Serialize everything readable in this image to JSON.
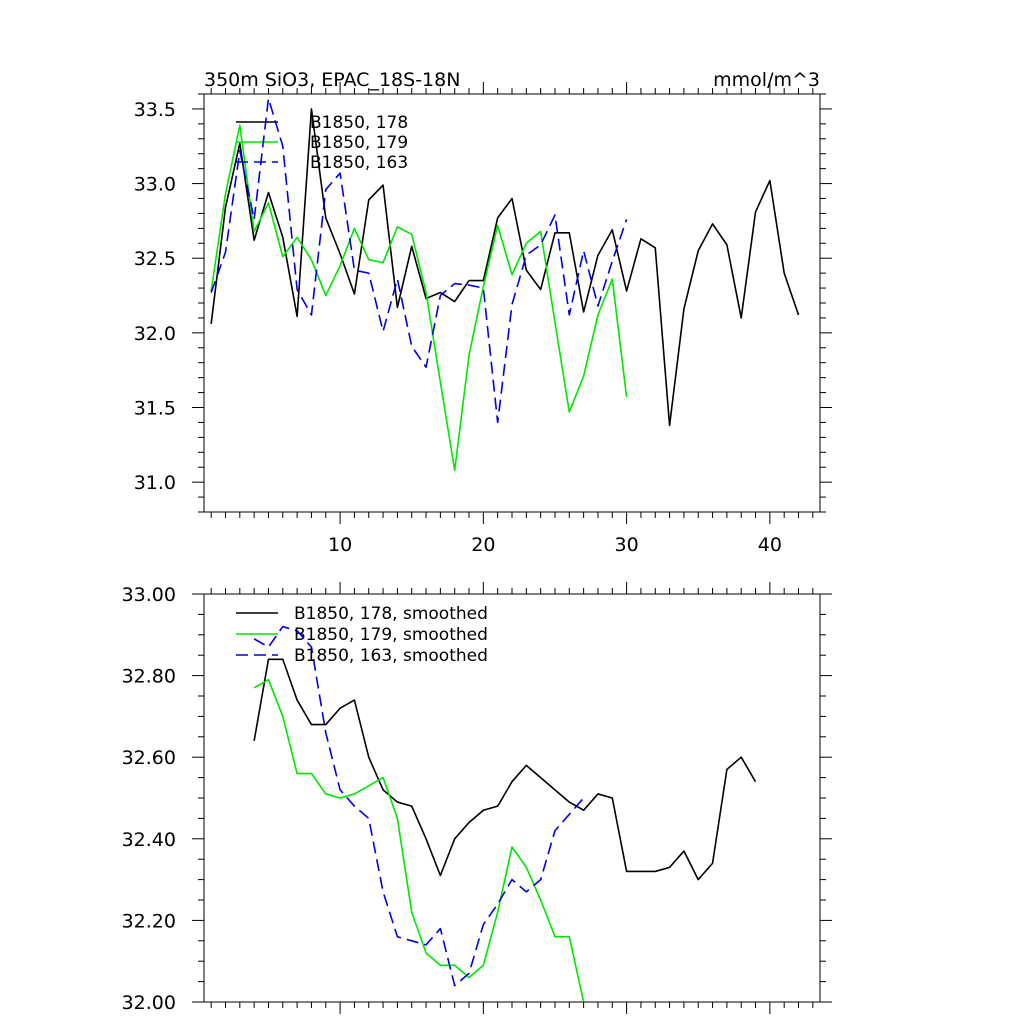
{
  "figure": {
    "title_left": "350m SiO3, EPAC_18S-18N",
    "title_right": "mmol/m^3"
  },
  "colors": {
    "series_178": "#000000",
    "series_179": "#00e600",
    "series_163": "#0000e6"
  },
  "chart_data": [
    {
      "type": "line",
      "title": "350m SiO3, EPAC_18S-18N",
      "units": "mmol/m^3",
      "xlim": [
        0.5,
        43.5
      ],
      "ylim": [
        30.8,
        33.6
      ],
      "xticks": [
        10,
        20,
        30,
        40
      ],
      "xtick_labels": [
        "10",
        "20",
        "30",
        "40"
      ],
      "yticks": [
        31.0,
        31.5,
        32.0,
        32.5,
        33.0,
        33.5
      ],
      "ytick_labels": [
        "31.0",
        "31.5",
        "32.0",
        "32.5",
        "33.0",
        "33.5"
      ],
      "legend_position": "top-left",
      "series": [
        {
          "name": "B1850, 178",
          "color_key": "series_178",
          "dash": "solid",
          "x": [
            1,
            2,
            3,
            4,
            5,
            6,
            7,
            8,
            9,
            10,
            11,
            12,
            13,
            14,
            15,
            16,
            17,
            18,
            19,
            20,
            21,
            22,
            23,
            24,
            25,
            26,
            27,
            28,
            29,
            30,
            31,
            32,
            33,
            34,
            35,
            36,
            37,
            38,
            39,
            40,
            41,
            42
          ],
          "values": [
            32.06,
            32.84,
            33.27,
            32.62,
            32.94,
            32.64,
            32.11,
            33.5,
            32.77,
            32.53,
            32.26,
            32.89,
            32.99,
            32.17,
            32.58,
            32.23,
            32.27,
            32.21,
            32.35,
            32.35,
            32.77,
            32.9,
            32.42,
            32.29,
            32.67,
            32.67,
            32.14,
            32.52,
            32.69,
            32.28,
            32.63,
            32.57,
            31.38,
            32.16,
            32.55,
            32.73,
            32.59,
            32.1,
            32.81,
            33.02,
            32.4,
            32.12
          ]
        },
        {
          "name": "B1850, 179",
          "color_key": "series_179",
          "dash": "solid",
          "x": [
            1,
            2,
            3,
            4,
            5,
            6,
            7,
            8,
            9,
            10,
            11,
            12,
            13,
            14,
            15,
            16,
            17,
            18,
            19,
            20,
            21,
            22,
            23,
            24,
            25,
            26,
            27,
            28,
            29,
            30
          ],
          "values": [
            32.28,
            32.93,
            33.39,
            32.68,
            32.87,
            32.51,
            32.64,
            32.49,
            32.25,
            32.45,
            32.7,
            32.49,
            32.47,
            32.71,
            32.66,
            32.27,
            31.67,
            31.08,
            31.85,
            32.31,
            32.72,
            32.39,
            32.6,
            32.68,
            32.07,
            31.47,
            31.71,
            32.12,
            32.36,
            31.57
          ]
        },
        {
          "name": "B1850, 163",
          "color_key": "series_163",
          "dash": "dashed",
          "x": [
            1,
            2,
            3,
            4,
            5,
            6,
            7,
            8,
            9,
            10,
            11,
            12,
            13,
            14,
            15,
            16,
            17,
            18,
            19,
            20,
            21,
            22,
            23,
            24,
            25,
            26,
            27,
            28,
            29,
            30
          ],
          "values": [
            32.27,
            32.54,
            33.22,
            32.76,
            33.57,
            33.25,
            32.29,
            32.12,
            32.96,
            33.07,
            32.42,
            32.4,
            32.01,
            32.36,
            31.91,
            31.77,
            32.25,
            32.33,
            32.32,
            32.3,
            31.4,
            32.19,
            32.52,
            32.59,
            32.79,
            32.12,
            32.55,
            32.18,
            32.48,
            32.76
          ]
        }
      ]
    },
    {
      "type": "line",
      "title": "",
      "xlim": [
        0.5,
        43.5
      ],
      "ylim": [
        32.0,
        33.0
      ],
      "xticks": [
        10,
        20,
        30,
        40
      ],
      "xtick_labels": [],
      "yticks": [
        32.0,
        32.2,
        32.4,
        32.6,
        32.8,
        33.0
      ],
      "ytick_labels": [
        "32.00",
        "32.20",
        "32.40",
        "32.60",
        "32.80",
        "33.00"
      ],
      "legend_position": "top-left",
      "series": [
        {
          "name": "B1850, 178, smoothed",
          "color_key": "series_178",
          "dash": "solid",
          "x": [
            4,
            5,
            6,
            7,
            8,
            9,
            10,
            11,
            12,
            13,
            14,
            15,
            16,
            17,
            18,
            19,
            20,
            21,
            22,
            23,
            24,
            25,
            26,
            27,
            28,
            29,
            30,
            31,
            32,
            33,
            34,
            35,
            36,
            37,
            38,
            39
          ],
          "values": [
            32.64,
            32.84,
            32.84,
            32.74,
            32.68,
            32.68,
            32.72,
            32.74,
            32.6,
            32.52,
            32.49,
            32.48,
            32.4,
            32.31,
            32.4,
            32.44,
            32.47,
            32.48,
            32.54,
            32.58,
            32.55,
            32.52,
            32.49,
            32.47,
            32.51,
            32.5,
            32.32,
            32.32,
            32.32,
            32.33,
            32.37,
            32.3,
            32.34,
            32.57,
            32.6,
            32.54
          ]
        },
        {
          "name": "B1850, 179, smoothed",
          "color_key": "series_179",
          "dash": "solid",
          "x": [
            4,
            5,
            6,
            7,
            8,
            9,
            10,
            11,
            12,
            13,
            14,
            15,
            16,
            17,
            18,
            19,
            20,
            21,
            22,
            23,
            24,
            25,
            26,
            27
          ],
          "values": [
            32.77,
            32.79,
            32.7,
            32.56,
            32.56,
            32.51,
            32.5,
            32.51,
            32.53,
            32.55,
            32.45,
            32.22,
            32.12,
            32.09,
            32.09,
            32.06,
            32.09,
            32.22,
            32.38,
            32.33,
            32.25,
            32.16,
            32.16,
            32.0
          ]
        },
        {
          "name": "B1850, 163, smoothed",
          "color_key": "series_163",
          "dash": "dashed",
          "x": [
            4,
            5,
            6,
            7,
            8,
            9,
            10,
            11,
            12,
            13,
            14,
            15,
            16,
            17,
            18,
            19,
            20,
            21,
            22,
            23,
            24,
            25,
            26,
            27
          ],
          "values": [
            32.89,
            32.87,
            32.92,
            32.91,
            32.87,
            32.66,
            32.52,
            32.48,
            32.45,
            32.27,
            32.16,
            32.15,
            32.14,
            32.18,
            32.04,
            32.07,
            32.19,
            32.24,
            32.3,
            32.27,
            32.3,
            32.42,
            32.46,
            32.5
          ]
        }
      ]
    }
  ]
}
